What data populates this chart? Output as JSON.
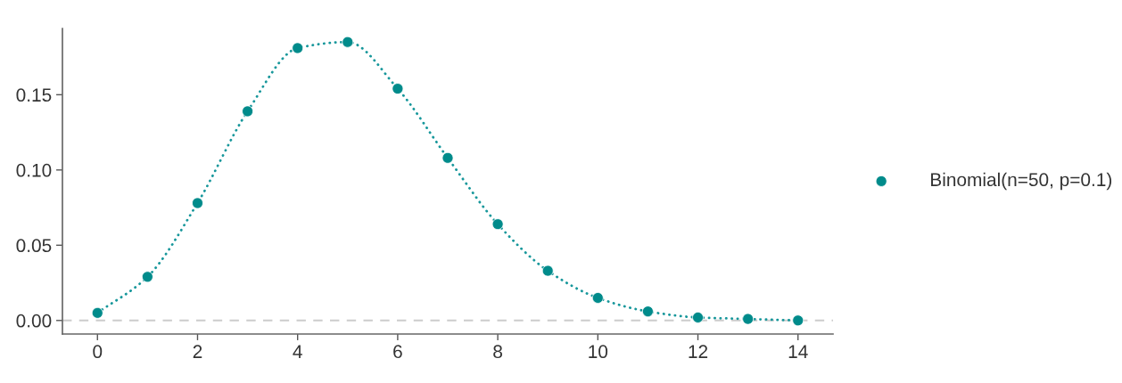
{
  "chart_data": {
    "type": "scatter",
    "x": [
      0,
      1,
      2,
      3,
      4,
      5,
      6,
      7,
      8,
      9,
      10,
      11,
      12,
      13,
      14
    ],
    "series": [
      {
        "name": "Binomial(n=50, p=0.1)",
        "marker": "circle",
        "color": "#008b8b",
        "values": [
          0.005,
          0.029,
          0.078,
          0.139,
          0.181,
          0.185,
          0.154,
          0.108,
          0.064,
          0.033,
          0.015,
          0.006,
          0.002,
          0.001,
          0.0
        ]
      },
      {
        "type": "line",
        "line_style": "dotted",
        "color": "#17979b",
        "values": [
          0.005,
          0.029,
          0.078,
          0.139,
          0.181,
          0.185,
          0.154,
          0.108,
          0.064,
          0.033,
          0.015,
          0.006,
          0.002,
          0.001,
          0.0
        ]
      }
    ],
    "xlim": [
      -0.7,
      14.7
    ],
    "ylim": [
      -0.009,
      0.194
    ],
    "xticks": [
      0,
      2,
      4,
      6,
      8,
      10,
      12,
      14
    ],
    "yticks": [
      {
        "value": 0,
        "label": "0.00"
      },
      {
        "value": 0.05,
        "label": "0.05"
      },
      {
        "value": 0.1,
        "label": "0.10"
      },
      {
        "value": 0.15,
        "label": "0.15"
      }
    ],
    "ref_lines": [
      {
        "axis": "y",
        "value": 0,
        "color": "#cccccc",
        "line_style": "dashed"
      }
    ],
    "legend": "right"
  }
}
